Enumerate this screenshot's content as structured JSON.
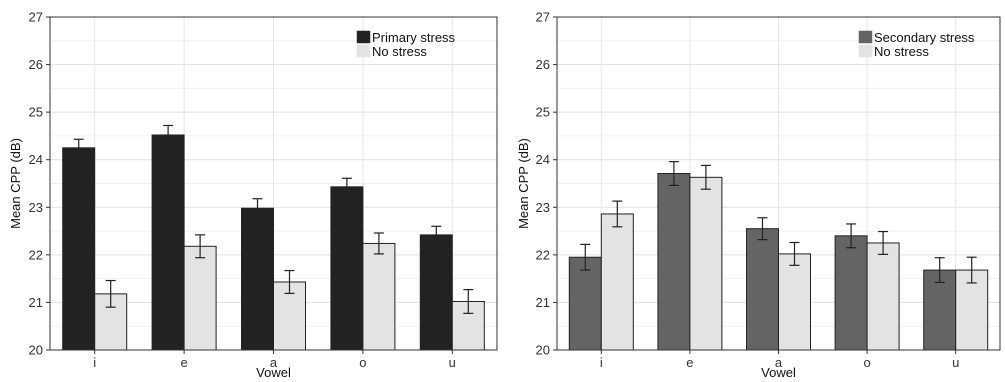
{
  "chart_data": [
    {
      "type": "bar",
      "categories": [
        "i",
        "e",
        "a",
        "o",
        "u"
      ],
      "xlabel": "Vowel",
      "ylabel": "Mean CPP (dB)",
      "ylim": [
        20,
        27
      ],
      "yticks": [
        "20",
        "21",
        "22",
        "23",
        "24",
        "25",
        "26",
        "27"
      ],
      "grid": true,
      "legend_position": "top-right",
      "series": [
        {
          "name": "Primary stress",
          "color": "#222222",
          "values": [
            24.25,
            24.52,
            22.98,
            23.43,
            22.42
          ],
          "errors": [
            0.18,
            0.2,
            0.2,
            0.18,
            0.18
          ]
        },
        {
          "name": "No stress",
          "color": "#e3e3e3",
          "values": [
            21.18,
            22.18,
            21.43,
            22.24,
            21.02
          ],
          "errors": [
            0.28,
            0.24,
            0.24,
            0.22,
            0.25
          ]
        }
      ]
    },
    {
      "type": "bar",
      "categories": [
        "i",
        "e",
        "a",
        "o",
        "u"
      ],
      "xlabel": "Vowel",
      "ylabel": "Mean CPP (dB)",
      "ylim": [
        20,
        27
      ],
      "yticks": [
        "20",
        "21",
        "22",
        "23",
        "24",
        "25",
        "26",
        "27"
      ],
      "grid": true,
      "legend_position": "top-right",
      "series": [
        {
          "name": "Secondary stress",
          "color": "#646464",
          "values": [
            21.95,
            23.71,
            22.55,
            22.4,
            21.68
          ],
          "errors": [
            0.27,
            0.25,
            0.23,
            0.25,
            0.26
          ]
        },
        {
          "name": "No stress",
          "color": "#e3e3e3",
          "values": [
            22.86,
            23.63,
            22.02,
            22.25,
            21.68
          ],
          "errors": [
            0.27,
            0.25,
            0.24,
            0.24,
            0.27
          ]
        }
      ]
    }
  ]
}
